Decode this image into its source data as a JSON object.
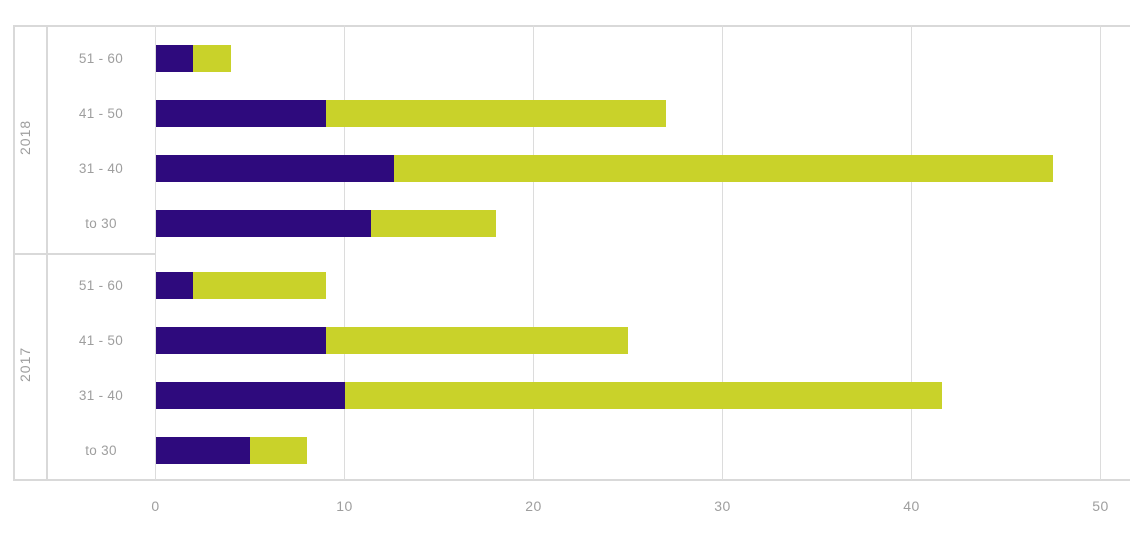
{
  "chart_data": {
    "type": "bar",
    "orientation": "horizontal",
    "stacked": true,
    "title": "",
    "xlabel": "",
    "ylabel": "",
    "xlim": [
      0,
      50
    ],
    "x_ticks": [
      "0",
      "10",
      "20",
      "30",
      "40",
      "50"
    ],
    "grid": true,
    "legend": "none",
    "series": [
      {
        "name": "segment-1",
        "color": "#2e0a7d"
      },
      {
        "name": "segment-2",
        "color": "#c9d22a"
      }
    ],
    "groups": [
      {
        "label": "2018",
        "rows": [
          {
            "category": "51 - 60",
            "values": [
              2,
              2
            ]
          },
          {
            "category": "41 - 50",
            "values": [
              9,
              18
            ]
          },
          {
            "category": "31 - 40",
            "values": [
              12.6,
              34.9
            ]
          },
          {
            "category": "to 30",
            "values": [
              11.4,
              6.6
            ]
          }
        ]
      },
      {
        "label": "2017",
        "rows": [
          {
            "category": "51 - 60",
            "values": [
              2,
              7
            ]
          },
          {
            "category": "41 - 50",
            "values": [
              9,
              16
            ]
          },
          {
            "category": "31 - 40",
            "values": [
              10,
              31.6
            ]
          },
          {
            "category": "to 30",
            "values": [
              5,
              3
            ]
          }
        ]
      }
    ],
    "colors": {
      "gridline": "#dcdcdc",
      "border": "#d9d9d9",
      "label_text": "#9e9e9e"
    }
  }
}
